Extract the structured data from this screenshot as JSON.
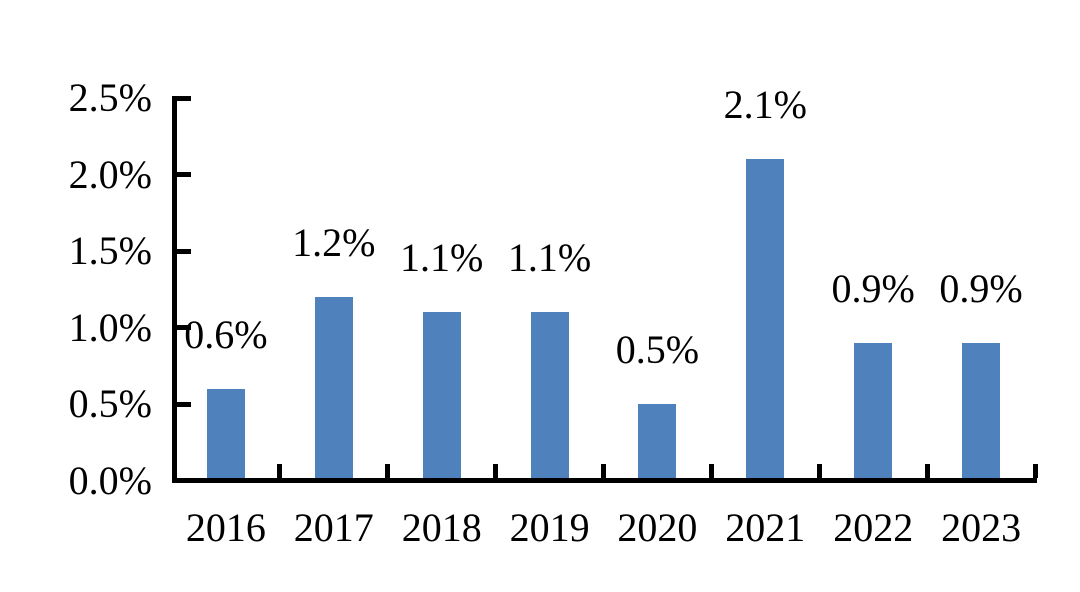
{
  "chart_data": {
    "type": "bar",
    "title": "",
    "xlabel": "",
    "ylabel": "",
    "legend": false,
    "grid": false,
    "categories": [
      "2016",
      "2017",
      "2018",
      "2019",
      "2020",
      "2021",
      "2022",
      "2023"
    ],
    "values": [
      0.6,
      1.2,
      1.1,
      1.1,
      0.5,
      2.1,
      0.9,
      0.9
    ],
    "data_labels": [
      "0.6%",
      "1.2%",
      "1.1%",
      "1.1%",
      "0.5%",
      "2.1%",
      "0.9%",
      "0.9%"
    ],
    "y_axis": {
      "tick_labels": [
        "0.0%",
        "0.5%",
        "1.0%",
        "1.5%",
        "2.0%",
        "2.5%"
      ],
      "tick_values": [
        0.0,
        0.5,
        1.0,
        1.5,
        2.0,
        2.5
      ],
      "range": [
        0.0,
        2.5
      ]
    },
    "colors": {
      "bar": "#4F81BD",
      "axis": "#000000",
      "text": "#000000",
      "background": "#FFFFFF"
    }
  }
}
